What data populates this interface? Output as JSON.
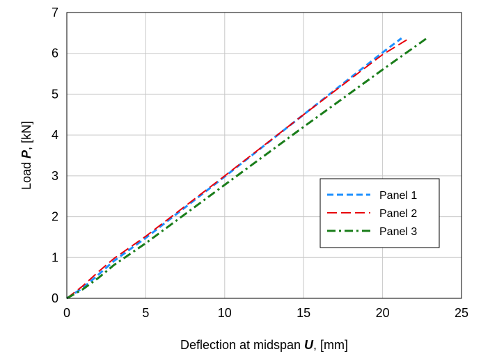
{
  "chart_data": {
    "type": "line",
    "xlabel_parts": [
      {
        "text": "Deflection at midspan ",
        "style": "normal"
      },
      {
        "text": "U",
        "style": "bold-italic"
      },
      {
        "text": ", [mm]",
        "style": "normal"
      }
    ],
    "ylabel_parts": [
      {
        "text": "Load ",
        "style": "normal"
      },
      {
        "text": "P",
        "style": "bold-italic"
      },
      {
        "text": ", [kN]",
        "style": "normal"
      }
    ],
    "xlim": [
      0,
      25
    ],
    "ylim": [
      0,
      7
    ],
    "xticks": [
      0,
      5,
      10,
      15,
      20,
      25
    ],
    "yticks": [
      0,
      1,
      2,
      3,
      4,
      5,
      6,
      7
    ],
    "grid": true,
    "legend_position": "right",
    "series": [
      {
        "name": "Panel 1",
        "color": "#1e90ff",
        "dash": "short-dash",
        "x": [
          0,
          1,
          2,
          3,
          5,
          10,
          15,
          20,
          21.2
        ],
        "y": [
          0,
          0.25,
          0.58,
          0.92,
          1.48,
          2.98,
          4.5,
          6.02,
          6.37
        ]
      },
      {
        "name": "Panel 2",
        "color": "#e8000b",
        "dash": "long-dash",
        "x": [
          0,
          1,
          2,
          3,
          5,
          10,
          15,
          20,
          21.7
        ],
        "y": [
          0,
          0.3,
          0.65,
          0.98,
          1.52,
          3.0,
          4.5,
          5.97,
          6.37
        ]
      },
      {
        "name": "Panel 3",
        "color": "#1a7d1a",
        "dash": "dash-dot",
        "x": [
          0,
          1,
          2,
          3,
          5,
          10,
          15,
          20,
          22.8
        ],
        "y": [
          0,
          0.22,
          0.5,
          0.82,
          1.35,
          2.78,
          4.2,
          5.6,
          6.37
        ]
      }
    ]
  }
}
